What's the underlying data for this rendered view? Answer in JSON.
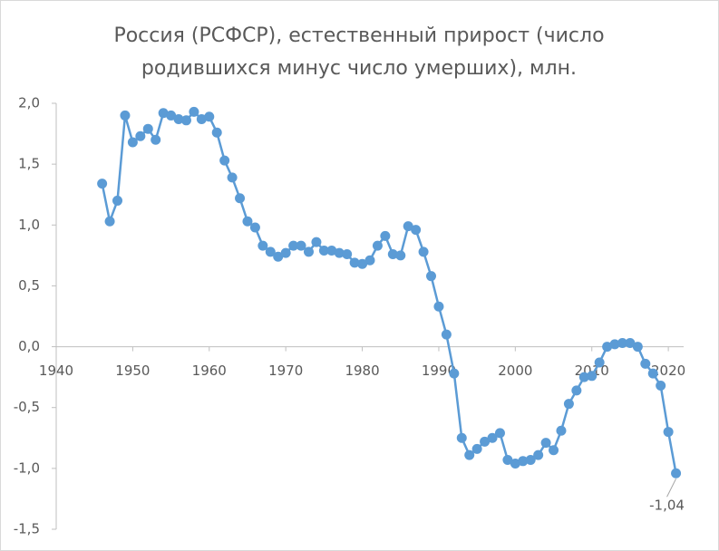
{
  "chart_data": {
    "type": "line",
    "title": [
      "Россия (РСФСР), естественный прирост (число",
      "родившихся минус число умерших), млн."
    ],
    "x": [
      1946,
      1947,
      1948,
      1949,
      1950,
      1951,
      1952,
      1953,
      1954,
      1955,
      1956,
      1957,
      1958,
      1959,
      1960,
      1961,
      1962,
      1963,
      1964,
      1965,
      1966,
      1967,
      1968,
      1969,
      1970,
      1971,
      1972,
      1973,
      1974,
      1975,
      1976,
      1977,
      1978,
      1979,
      1980,
      1981,
      1982,
      1983,
      1984,
      1985,
      1986,
      1987,
      1988,
      1989,
      1990,
      1991,
      1992,
      1993,
      1994,
      1995,
      1996,
      1997,
      1998,
      1999,
      2000,
      2001,
      2002,
      2003,
      2004,
      2005,
      2006,
      2007,
      2008,
      2009,
      2010,
      2011,
      2012,
      2013,
      2014,
      2015,
      2016,
      2017,
      2018,
      2019,
      2020,
      2021
    ],
    "series": [
      {
        "color": "#5b9bd5",
        "values": [
          1.34,
          1.03,
          1.2,
          1.9,
          1.68,
          1.73,
          1.79,
          1.7,
          1.92,
          1.9,
          1.87,
          1.86,
          1.93,
          1.87,
          1.89,
          1.76,
          1.53,
          1.39,
          1.22,
          1.03,
          0.98,
          0.83,
          0.78,
          0.74,
          0.77,
          0.83,
          0.83,
          0.78,
          0.86,
          0.79,
          0.79,
          0.77,
          0.76,
          0.69,
          0.68,
          0.71,
          0.83,
          0.91,
          0.76,
          0.75,
          0.99,
          0.96,
          0.78,
          0.58,
          0.33,
          0.1,
          -0.22,
          -0.75,
          -0.89,
          -0.84,
          -0.78,
          -0.75,
          -0.71,
          -0.93,
          -0.96,
          -0.94,
          -0.93,
          -0.89,
          -0.79,
          -0.85,
          -0.69,
          -0.47,
          -0.36,
          -0.25,
          -0.24,
          -0.13,
          0.0,
          0.02,
          0.03,
          0.03,
          0.0,
          -0.14,
          -0.22,
          -0.32,
          -0.7,
          -1.04
        ],
        "value_labels": [
          null,
          null,
          null,
          null,
          null,
          null,
          null,
          null,
          null,
          null,
          null,
          null,
          null,
          null,
          null,
          null,
          null,
          null,
          null,
          null,
          null,
          null,
          null,
          null,
          null,
          null,
          null,
          null,
          null,
          null,
          null,
          null,
          null,
          null,
          null,
          null,
          null,
          null,
          null,
          null,
          null,
          null,
          null,
          null,
          null,
          null,
          null,
          null,
          null,
          null,
          null,
          null,
          null,
          null,
          null,
          null,
          null,
          null,
          null,
          null,
          null,
          null,
          null,
          null,
          null,
          null,
          null,
          null,
          null,
          null,
          null,
          null,
          null,
          null,
          null,
          "-1,04"
        ]
      }
    ],
    "xlim": [
      1940,
      2022
    ],
    "xticks": [
      1940,
      1950,
      1960,
      1970,
      1980,
      1990,
      2000,
      2010,
      2020
    ],
    "ylim": [
      -1.5,
      2.0
    ],
    "yticks": [
      {
        "value": -1.5,
        "label": "-1,5"
      },
      {
        "value": -1.0,
        "label": "-1,0"
      },
      {
        "value": -0.5,
        "label": "-0,5"
      },
      {
        "value": 0,
        "label": "0,0"
      },
      {
        "value": 0.5,
        "label": "0,5"
      },
      {
        "value": 1.0,
        "label": "1,0"
      },
      {
        "value": 1.5,
        "label": "1,5"
      },
      {
        "value": 2.0,
        "label": "2,0"
      }
    ],
    "grid": false
  }
}
